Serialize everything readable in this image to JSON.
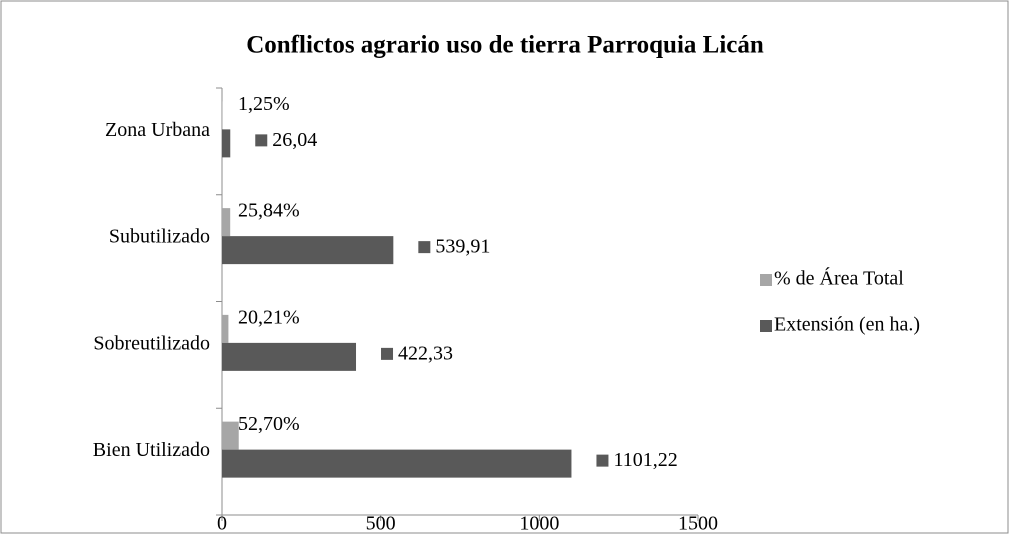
{
  "chart_data": {
    "type": "bar",
    "orientation": "horizontal",
    "title": "Conflictos agrario uso de tierra Parroquia Licán",
    "categories": [
      "Bien Utilizado",
      "Sobreutilizado",
      "Subutilizado",
      "Zona Urbana"
    ],
    "series": [
      {
        "name": "% de Área Total",
        "color": "#a6a6a6",
        "values": [
          52.7,
          20.21,
          25.84,
          1.25
        ],
        "value_labels": [
          "52,70%",
          "20,21%",
          "25,84%",
          "1,25%"
        ]
      },
      {
        "name": "Extensión (en ha.)",
        "color": "#595959",
        "values": [
          1101.22,
          422.33,
          539.91,
          26.04
        ],
        "value_labels": [
          "1101,22",
          "422,33",
          "539,91",
          "26,04"
        ]
      }
    ],
    "xlim": [
      0,
      1500
    ],
    "xticks": [
      0,
      500,
      1000,
      1500
    ],
    "legend": "right"
  }
}
